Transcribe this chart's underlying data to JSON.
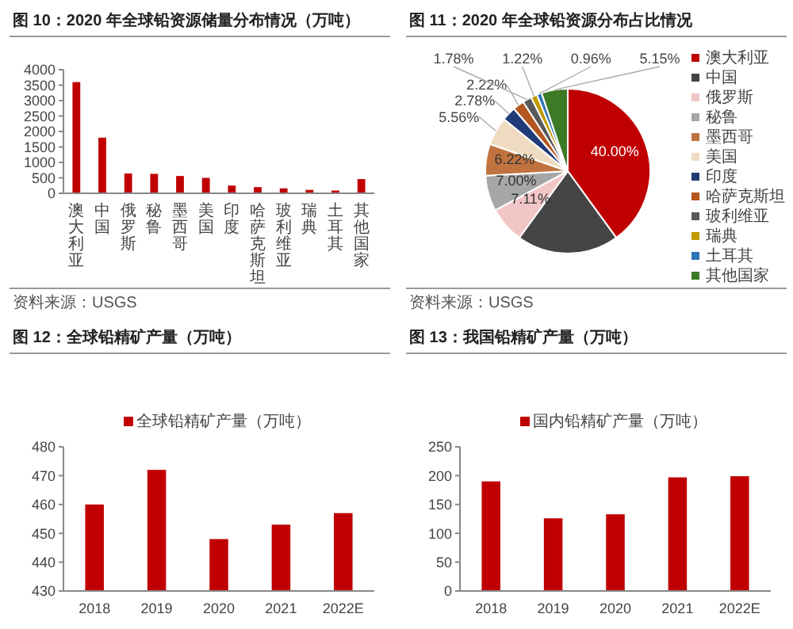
{
  "chart_data": [
    {
      "type": "bar",
      "title": "图 10：2020 年全球铅资源储量分布情况（万吨）",
      "categories": [
        "澳大利亚",
        "中国",
        "俄罗斯",
        "秘鲁",
        "墨西哥",
        "美国",
        "印度",
        "哈萨克斯坦",
        "玻利维亚",
        "瑞典",
        "土耳其",
        "其他国家"
      ],
      "series": [
        {
          "color": "#c00000",
          "values": [
            3600,
            1800,
            640,
            630,
            560,
            500,
            250,
            200,
            160,
            110,
            90,
            460
          ]
        }
      ],
      "ylim": [
        0,
        4000
      ],
      "yticks": [
        0,
        500,
        1000,
        1500,
        2000,
        2500,
        3000,
        3500,
        4000
      ],
      "legend": false,
      "annotations": [
        "资料来源：USGS"
      ]
    },
    {
      "type": "pie",
      "title": "图 11：2020 年全球铅资源分布占比情况",
      "categories": [
        "澳大利亚",
        "中国",
        "俄罗斯",
        "秘鲁",
        "墨西哥",
        "美国",
        "印度",
        "哈萨克斯坦",
        "玻利维亚",
        "瑞典",
        "土耳其",
        "其他国家"
      ],
      "values": [
        40,
        20,
        7.11,
        7,
        6.22,
        5.56,
        2.78,
        2.22,
        1.78,
        1.22,
        0.96,
        5.15
      ],
      "colors": [
        "#c00000",
        "#454545",
        "#f2c6c6",
        "#a6a6a6",
        "#c0733f",
        "#efdcc0",
        "#1f3b78",
        "#b4561f",
        "#595959",
        "#c09a00",
        "#2e75b6",
        "#3d7a26"
      ],
      "value_labels": [
        "40.00%",
        null,
        "7.11%",
        "7.00%",
        "6.22%",
        "5.56%",
        "2.78%",
        "2.22%",
        "1.78%",
        "1.22%",
        "0.96%",
        "5.15%"
      ],
      "legend": "right",
      "annotations": [
        "资料来源：USGS"
      ]
    },
    {
      "type": "bar",
      "title": "图 12：全球铅精矿产量（万吨）",
      "categories": [
        "2018",
        "2019",
        "2020",
        "2021",
        "2022E"
      ],
      "series": [
        {
          "name": "全球铅精矿产量（万吨）",
          "color": "#c00000",
          "values": [
            460,
            472,
            448,
            453,
            457
          ]
        }
      ],
      "ylim": [
        430,
        480
      ],
      "yticks": [
        430,
        440,
        450,
        460,
        470,
        480
      ],
      "legend": "top"
    },
    {
      "type": "bar",
      "title": "图 13：我国铅精矿产量（万吨）",
      "categories": [
        "2018",
        "2019",
        "2020",
        "2021",
        "2022E"
      ],
      "series": [
        {
          "name": "国内铅精矿产量（万吨）",
          "color": "#c00000",
          "values": [
            190,
            126,
            133,
            197,
            199
          ]
        }
      ],
      "ylim": [
        0,
        250
      ],
      "yticks": [
        0,
        50,
        100,
        150,
        200,
        250
      ],
      "legend": "top"
    }
  ]
}
